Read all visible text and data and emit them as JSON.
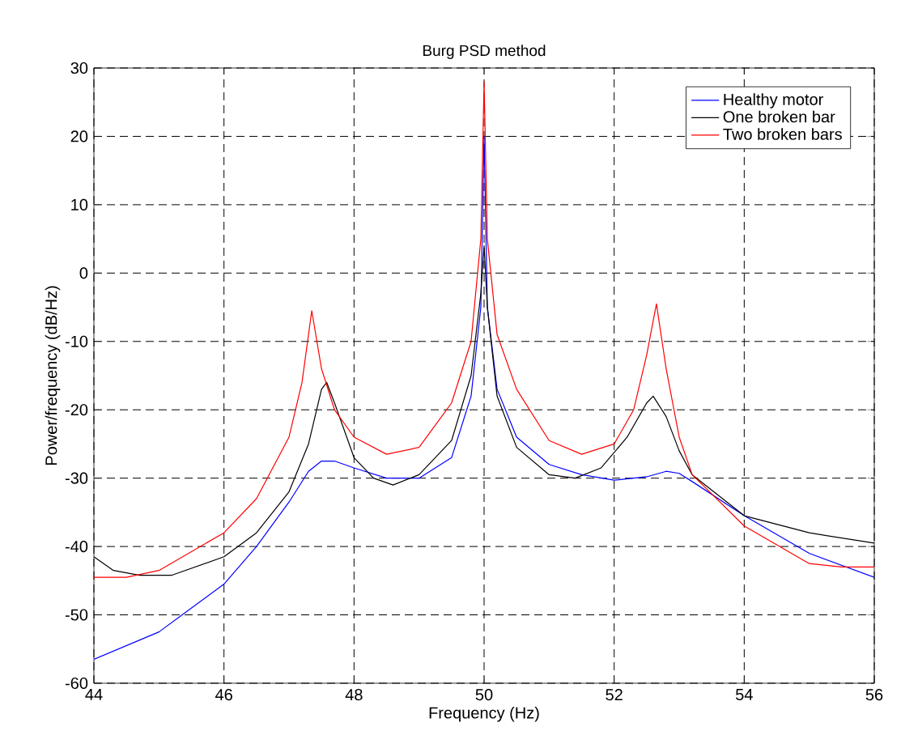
{
  "chart_data": {
    "type": "line",
    "title": "Burg PSD method",
    "xlabel": "Frequency (Hz)",
    "ylabel": "Power/frequency (dB/Hz)",
    "xlim": [
      44,
      56
    ],
    "ylim": [
      -60,
      30
    ],
    "xticks": [
      44,
      46,
      48,
      50,
      52,
      54,
      56
    ],
    "yticks": [
      -60,
      -50,
      -40,
      -30,
      -20,
      -10,
      0,
      10,
      20,
      30
    ],
    "grid": true,
    "legend": "top right",
    "series": [
      {
        "name": "Healthy motor",
        "color": "#0000ff",
        "x": [
          44,
          45,
          46,
          46.5,
          47,
          47.3,
          47.5,
          47.7,
          48,
          48.5,
          49,
          49.5,
          49.8,
          49.95,
          50,
          50.05,
          50.2,
          50.5,
          51,
          51.5,
          52,
          52.5,
          52.8,
          53,
          53.2,
          54,
          55,
          56
        ],
        "values": [
          -56.5,
          -52.5,
          -45.5,
          -40,
          -33.5,
          -29,
          -27.5,
          -27.5,
          -28.5,
          -30,
          -30,
          -27,
          -18,
          -5,
          20,
          -5,
          -17,
          -24,
          -28,
          -29.5,
          -30.3,
          -29.8,
          -29,
          -29.3,
          -30.5,
          -35.5,
          -41,
          -44.5
        ]
      },
      {
        "name": "One broken bar",
        "color": "#000000",
        "x": [
          44,
          44.3,
          44.7,
          45.2,
          46,
          46.5,
          47,
          47.3,
          47.5,
          47.58,
          47.7,
          48,
          48.3,
          48.6,
          49,
          49.5,
          49.8,
          49.95,
          50,
          50.05,
          50.2,
          50.5,
          51,
          51.4,
          51.8,
          52.2,
          52.5,
          52.6,
          52.8,
          53,
          53.2,
          54,
          55,
          56
        ],
        "values": [
          -41.5,
          -43.5,
          -44.2,
          -44.2,
          -41.5,
          -38,
          -32,
          -25,
          -17,
          -16,
          -19,
          -27,
          -30,
          -31,
          -29.5,
          -24.5,
          -15,
          -3,
          4,
          -5,
          -18,
          -25.5,
          -29.5,
          -30,
          -28.5,
          -24,
          -19,
          -18,
          -21,
          -26,
          -29.5,
          -35.5,
          -38,
          -39.5
        ]
      },
      {
        "name": "Two broken bars",
        "color": "#ff0000",
        "x": [
          44,
          44.5,
          45,
          46,
          46.5,
          47,
          47.2,
          47.35,
          47.5,
          47.7,
          48,
          48.5,
          49,
          49.5,
          49.8,
          49.95,
          50,
          50.05,
          50.2,
          50.5,
          51,
          51.5,
          52,
          52.3,
          52.5,
          52.65,
          52.8,
          53,
          53.2,
          54,
          55,
          55.5,
          56
        ],
        "values": [
          -44.5,
          -44.5,
          -43.5,
          -38,
          -33,
          -24,
          -16,
          -5.5,
          -14,
          -20,
          -24,
          -26.5,
          -25.5,
          -19,
          -10,
          5,
          28,
          5,
          -9,
          -17,
          -24.5,
          -26.5,
          -25,
          -20,
          -12,
          -4.5,
          -14,
          -24,
          -29.5,
          -37,
          -42.5,
          -43,
          -43
        ]
      }
    ]
  }
}
